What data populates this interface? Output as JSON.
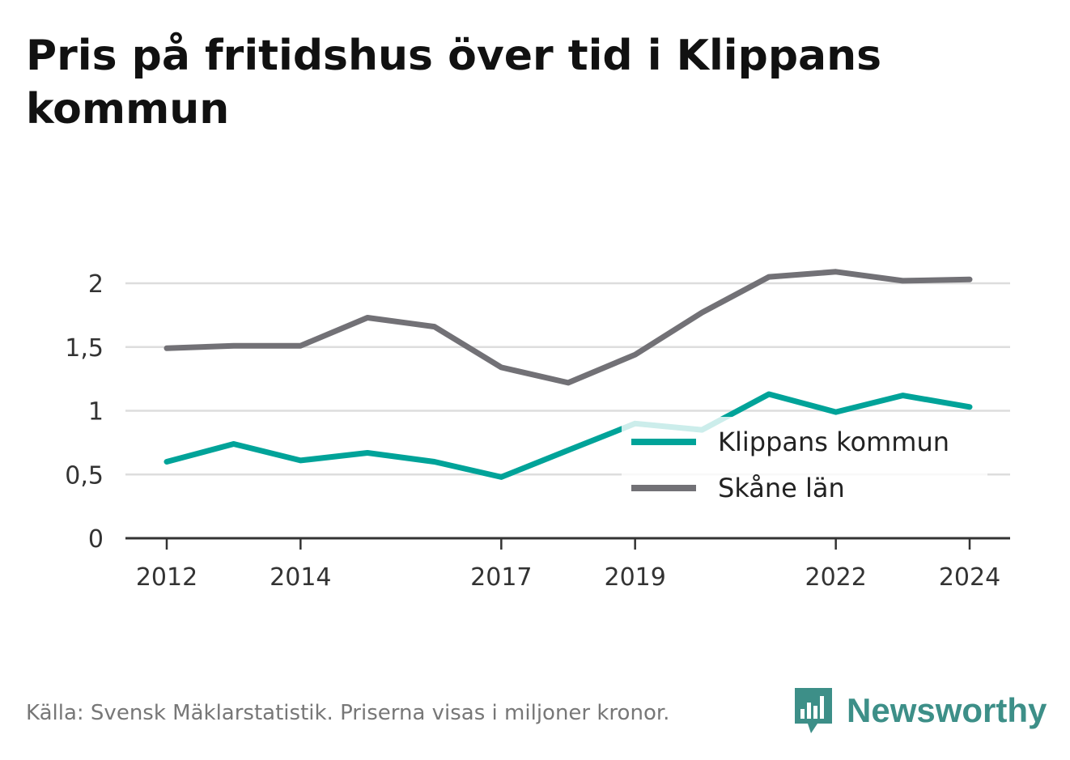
{
  "title": "Pris på fritidshus över tid i Klippans kommun",
  "source": "Källa: Svensk Mäklarstatistik. Priserna visas i miljoner kronor.",
  "brand": {
    "name": "Newsworthy",
    "icon": "newsworthy-logo-icon",
    "color": "#3d8f88"
  },
  "chart_data": {
    "type": "line",
    "x": [
      2012,
      2013,
      2014,
      2015,
      2016,
      2017,
      2018,
      2019,
      2020,
      2021,
      2022,
      2023,
      2024
    ],
    "x_tick_labels": [
      "2012",
      "2014",
      "2017",
      "2019",
      "2022",
      "2024"
    ],
    "x_tick_values": [
      2012,
      2014,
      2017,
      2019,
      2022,
      2024
    ],
    "y_tick_labels": [
      "0",
      "0,5",
      "1",
      "1,5",
      "2"
    ],
    "y_tick_values": [
      0,
      0.5,
      1,
      1.5,
      2
    ],
    "ylim": [
      0,
      2
    ],
    "grid": true,
    "legend_position": "bottom-right",
    "series": [
      {
        "name": "Klippans kommun",
        "color": "#00a399",
        "values": [
          0.6,
          0.74,
          0.61,
          0.67,
          0.6,
          0.48,
          0.69,
          0.9,
          0.85,
          1.13,
          0.99,
          1.12,
          1.03
        ]
      },
      {
        "name": "Skåne län",
        "color": "#727176",
        "values": [
          1.49,
          1.51,
          1.51,
          1.73,
          1.66,
          1.34,
          1.22,
          1.44,
          1.77,
          2.05,
          2.09,
          2.02,
          2.03
        ]
      }
    ]
  }
}
